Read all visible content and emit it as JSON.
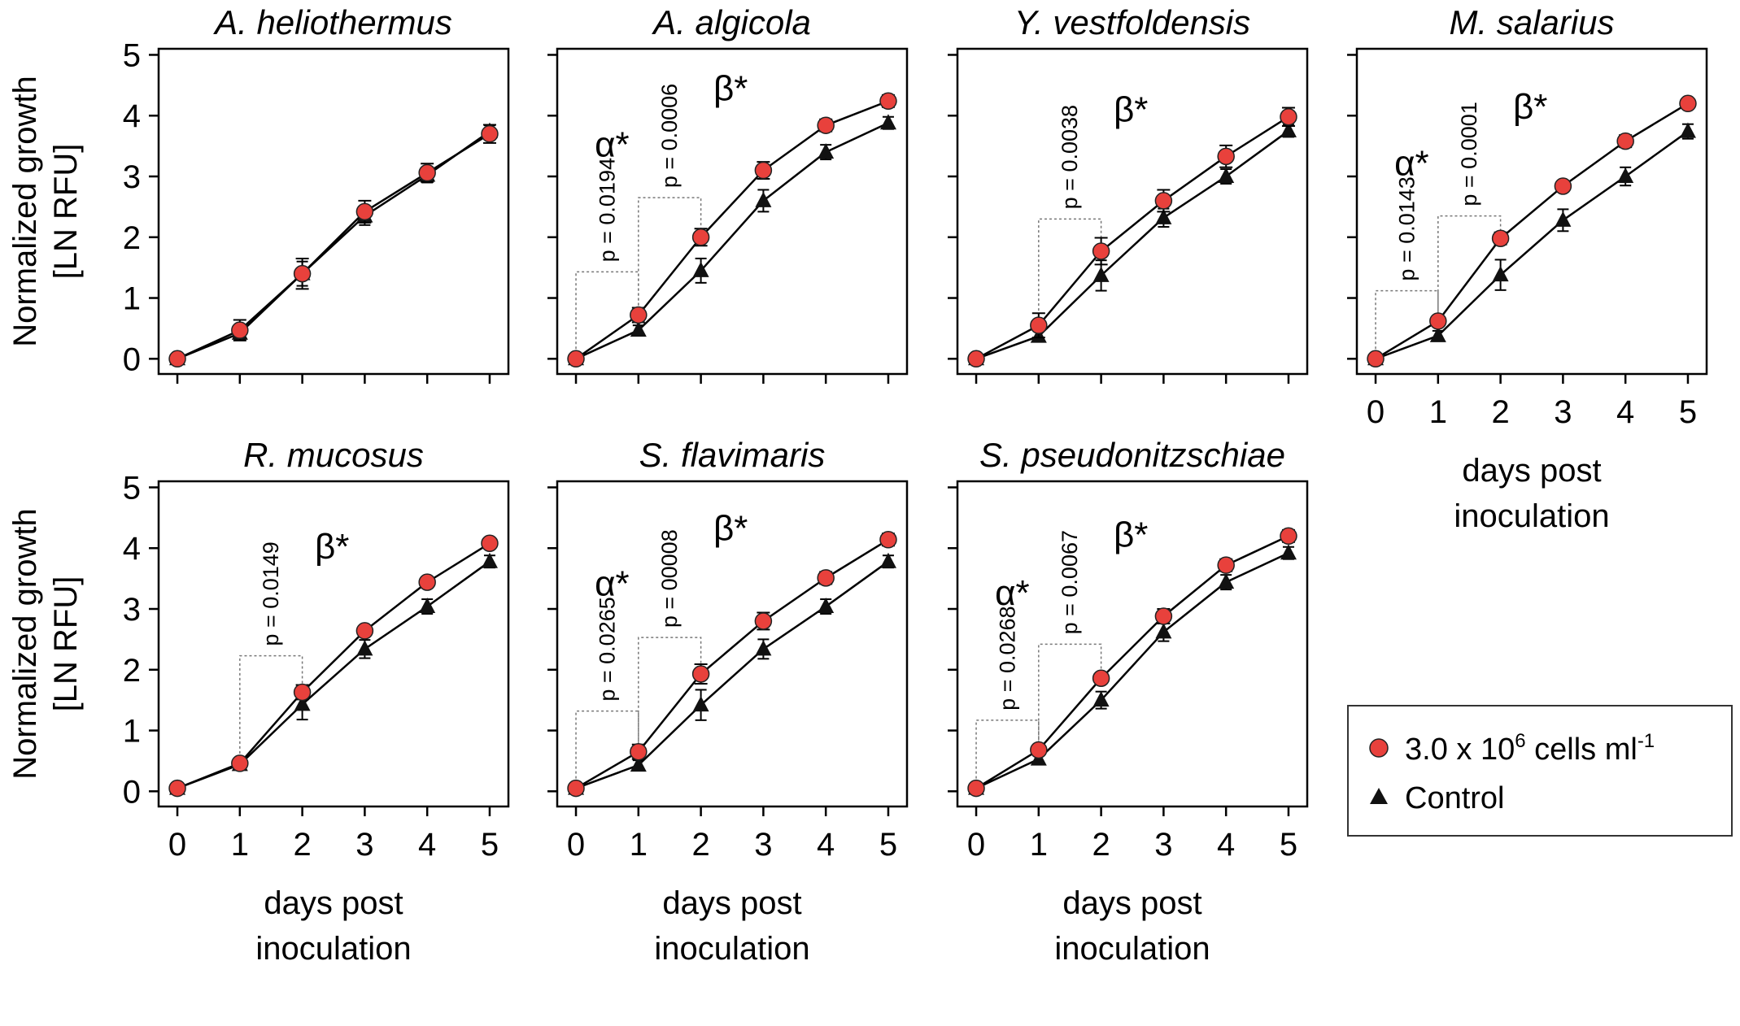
{
  "chart_data": {
    "type": "line",
    "layout": "2x4 grid of small multiples",
    "xlabel": "days post inoculation",
    "xlabel_lines": [
      "days post",
      "inoculation"
    ],
    "ylabel": "Normalized growth [LN RFU]",
    "ylabel_lines": [
      "Normalized growth",
      "[LN RFU]"
    ],
    "x": [
      0,
      1,
      2,
      3,
      4,
      5
    ],
    "xlim": [
      -0.3,
      5.3
    ],
    "ylim": [
      -0.25,
      5.1
    ],
    "xticks": [
      0,
      1,
      2,
      3,
      4,
      5
    ],
    "yticks": [
      0,
      1,
      2,
      3,
      4,
      5
    ],
    "legend": {
      "position": "bottom-right",
      "treated_label_parts": [
        "3.0 x 10",
        "6",
        " cells ml",
        "-1"
      ],
      "treated_label": "3.0 x 10^6 cells ml^-1",
      "control_label": "Control",
      "treated_color": "#e8413c",
      "control_color": "#111111"
    },
    "panels": [
      {
        "title": "A. heliothermus",
        "treated": [
          0.0,
          0.47,
          1.4,
          2.42,
          3.06,
          3.7
        ],
        "treated_err": [
          0.04,
          0.17,
          0.25,
          0.18,
          0.15,
          0.15
        ],
        "control": [
          0.0,
          0.42,
          1.4,
          2.35,
          3.02,
          3.74
        ],
        "control_err": [
          0.04,
          0.1,
          0.2,
          0.15,
          0.12,
          0.1
        ],
        "annotations": []
      },
      {
        "title": "A. algicola",
        "treated": [
          0.0,
          0.72,
          2.0,
          3.1,
          3.84,
          4.24
        ],
        "treated_err": [
          0.04,
          0.12,
          0.14,
          0.14,
          0.1,
          0.1
        ],
        "control": [
          0.0,
          0.47,
          1.45,
          2.6,
          3.4,
          3.88
        ],
        "control_err": [
          0.04,
          0.08,
          0.2,
          0.18,
          0.12,
          0.1
        ],
        "annotations": [
          {
            "text": "p = 0.0194",
            "day_from": 0,
            "day_to": 1,
            "top": 1.43
          },
          {
            "text": "p = 0.0006",
            "day_from": 1,
            "day_to": 2,
            "top": 2.65
          }
        ],
        "sig_labels": [
          "α*",
          "β*"
        ]
      },
      {
        "title": "Y. vestfoldensis",
        "treated": [
          0.0,
          0.55,
          1.77,
          2.6,
          3.33,
          3.98
        ],
        "treated_err": [
          0.04,
          0.2,
          0.22,
          0.18,
          0.18,
          0.15
        ],
        "control": [
          0.0,
          0.37,
          1.37,
          2.32,
          3.0,
          3.75
        ],
        "control_err": [
          0.04,
          0.08,
          0.25,
          0.15,
          0.12,
          0.1
        ],
        "annotations": [
          {
            "text": "p = 0.0038",
            "day_from": 1,
            "day_to": 2,
            "top": 2.3
          }
        ],
        "sig_labels": [
          "β*"
        ]
      },
      {
        "title": "M. salarius",
        "treated": [
          0.0,
          0.62,
          1.98,
          2.84,
          3.58,
          4.2
        ],
        "treated_err": [
          0.04,
          0.06,
          0.1,
          0.06,
          0.1,
          0.05
        ],
        "control": [
          0.0,
          0.38,
          1.38,
          2.28,
          3.0,
          3.74
        ],
        "control_err": [
          0.04,
          0.08,
          0.25,
          0.18,
          0.15,
          0.12
        ],
        "annotations": [
          {
            "text": "p = 0.0143",
            "day_from": 0,
            "day_to": 1,
            "top": 1.12
          },
          {
            "text": "p = 0.0001",
            "day_from": 1,
            "day_to": 2,
            "top": 2.35
          }
        ],
        "sig_labels": [
          "α*",
          "β*"
        ]
      },
      {
        "title": "R. mucosus",
        "treated": [
          0.05,
          0.46,
          1.63,
          2.64,
          3.44,
          4.08
        ],
        "treated_err": [
          0.04,
          0.08,
          0.12,
          0.08,
          0.08,
          0.06
        ],
        "control": [
          0.05,
          0.44,
          1.43,
          2.34,
          3.04,
          3.78
        ],
        "control_err": [
          0.04,
          0.08,
          0.25,
          0.15,
          0.12,
          0.1
        ],
        "annotations": [
          {
            "text": "p = 0.0149",
            "day_from": 1,
            "day_to": 2,
            "top": 2.23
          }
        ],
        "sig_labels": [
          "β*"
        ]
      },
      {
        "title": "S. flavimaris",
        "treated": [
          0.05,
          0.65,
          1.93,
          2.8,
          3.51,
          4.14
        ],
        "treated_err": [
          0.04,
          0.12,
          0.16,
          0.14,
          0.1,
          0.1
        ],
        "control": [
          0.05,
          0.43,
          1.42,
          2.34,
          3.04,
          3.78
        ],
        "control_err": [
          0.04,
          0.08,
          0.25,
          0.16,
          0.12,
          0.1
        ],
        "annotations": [
          {
            "text": "p = 0.0265",
            "day_from": 0,
            "day_to": 1,
            "top": 1.32
          },
          {
            "text": "p = 00008",
            "day_from": 1,
            "day_to": 2,
            "top": 2.53
          }
        ],
        "sig_labels": [
          "α*",
          "β*"
        ]
      },
      {
        "title": "S. pseudonitzschiae",
        "treated": [
          0.05,
          0.68,
          1.86,
          2.88,
          3.72,
          4.2
        ],
        "treated_err": [
          0.04,
          0.06,
          0.08,
          0.12,
          0.1,
          0.1
        ],
        "control": [
          0.05,
          0.53,
          1.5,
          2.62,
          3.44,
          3.92
        ],
        "control_err": [
          0.04,
          0.06,
          0.14,
          0.15,
          0.12,
          0.1
        ],
        "annotations": [
          {
            "text": "p = 0.0268",
            "day_from": 0,
            "day_to": 1,
            "top": 1.17
          },
          {
            "text": "p = 0.0067",
            "day_from": 1,
            "day_to": 2,
            "top": 2.42
          }
        ],
        "sig_labels": [
          "α*",
          "β*"
        ]
      }
    ]
  }
}
